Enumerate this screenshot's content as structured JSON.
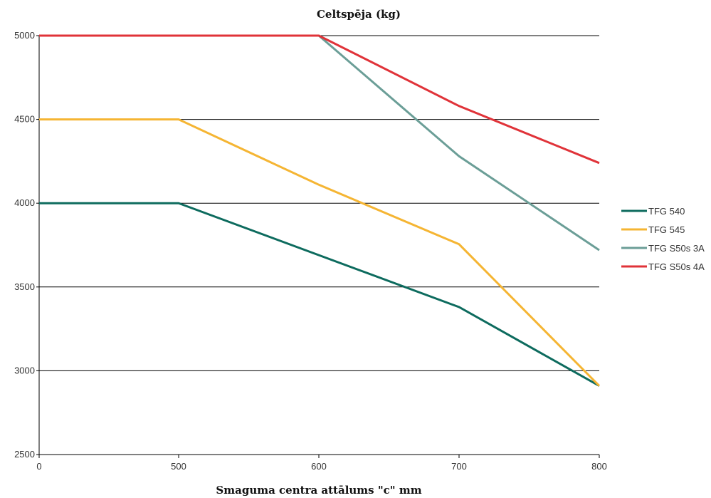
{
  "chart_data": {
    "type": "line",
    "title": "Celtspēja (kg)",
    "xlabel": "Smaguma centra attālums \"c\" mm",
    "ylabel": "",
    "x_tick_labels": [
      "0",
      "500",
      "600",
      "700",
      "800"
    ],
    "y_ticks": [
      2500,
      3000,
      3500,
      4000,
      4500,
      5000
    ],
    "ylim": [
      2500,
      5000
    ],
    "grid": "horizontal",
    "legend_position": "right",
    "series": [
      {
        "name": "TFG 540",
        "color": "#0d6b5e",
        "values": [
          4000,
          4000,
          3690,
          3380,
          2910
        ]
      },
      {
        "name": "TFG 545",
        "color": "#f5b533",
        "values": [
          4500,
          4500,
          4110,
          3755,
          2910
        ]
      },
      {
        "name": "TFG S50s 3A",
        "color": "#6b9e97",
        "values": [
          5000,
          5000,
          5000,
          4280,
          3720
        ]
      },
      {
        "name": "TFG S50s 4A",
        "color": "#e03339",
        "values": [
          5000,
          5000,
          5000,
          4580,
          4240
        ]
      }
    ]
  }
}
